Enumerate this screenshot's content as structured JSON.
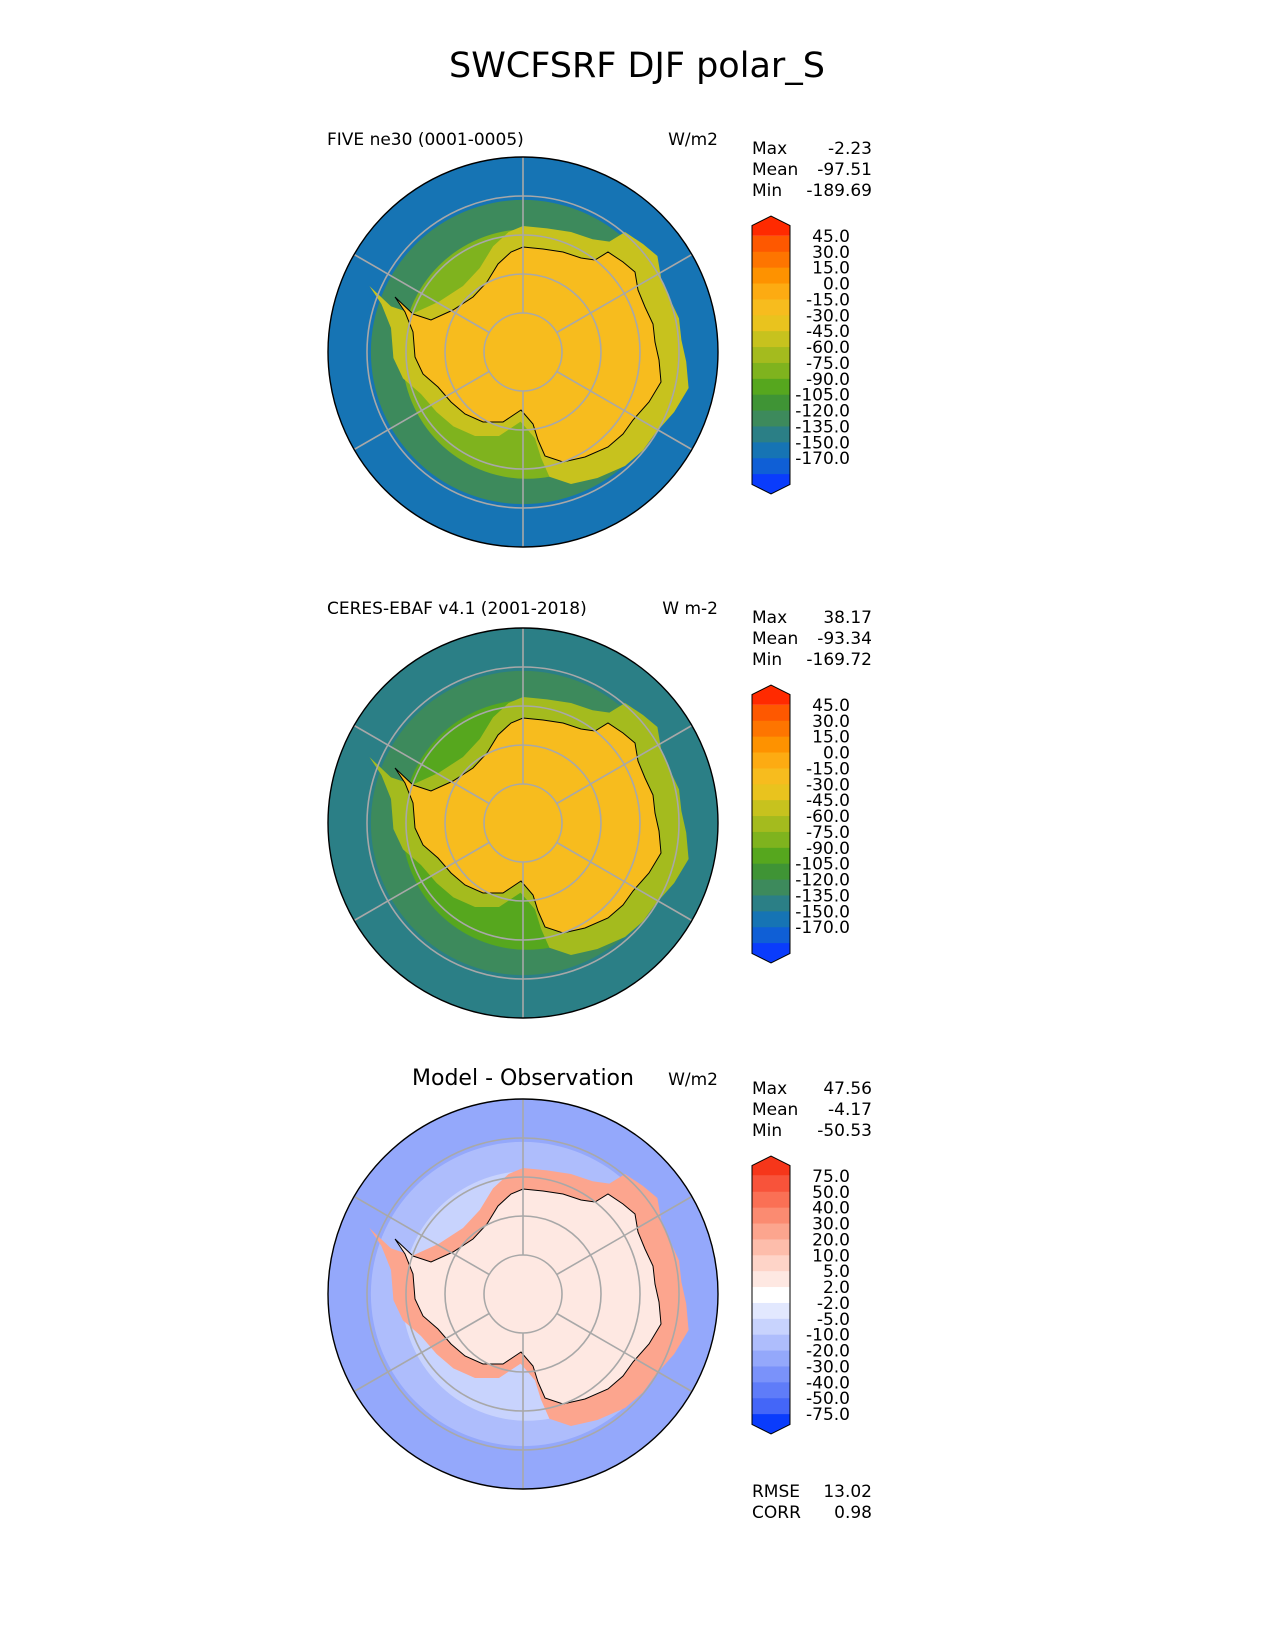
{
  "figure_title": "SWCFSRF DJF polar_S",
  "chart_data": [
    {
      "type": "heatmap",
      "projection": "south-polar-stereographic",
      "title": "FIVE ne30 (0001-0005)",
      "units": "W/m2",
      "stats": [
        {
          "label": "Max",
          "value": "-2.23"
        },
        {
          "label": "Mean",
          "value": "-97.51"
        },
        {
          "label": "Min",
          "value": "-189.69"
        }
      ],
      "colorbar": {
        "levels": [
          "45.0",
          "30.0",
          "15.0",
          "0.0",
          "-15.0",
          "-30.0",
          "-45.0",
          "-60.0",
          "-75.0",
          "-90.0",
          "-105.0",
          "-120.0",
          "-135.0",
          "-150.0",
          "-170.0"
        ],
        "colors": [
          "#ff2a00",
          "#fe5800",
          "#fe7500",
          "#fe9200",
          "#fdab12",
          "#f7bc1e",
          "#e9c31e",
          "#c7c21e",
          "#a4bb1e",
          "#7fb31e",
          "#56a71e",
          "#3f9435",
          "#3d8a5c",
          "#2b7f86",
          "#1674b4",
          "#0f5fd6",
          "#0a3cfc"
        ],
        "extend": "both"
      },
      "field": {
        "continent": -25,
        "coast_band": -55,
        "inner_ring": -80,
        "middle_ring": -120,
        "outer_ring": -150
      }
    },
    {
      "type": "heatmap",
      "projection": "south-polar-stereographic",
      "title": "CERES-EBAF v4.1 (2001-2018)",
      "units": "W m-2",
      "stats": [
        {
          "label": "Max",
          "value": "38.17"
        },
        {
          "label": "Mean",
          "value": "-93.34"
        },
        {
          "label": "Min",
          "value": "-169.72"
        }
      ],
      "colorbar": {
        "levels": [
          "45.0",
          "30.0",
          "15.0",
          "0.0",
          "-15.0",
          "-30.0",
          "-45.0",
          "-60.0",
          "-75.0",
          "-90.0",
          "-105.0",
          "-120.0",
          "-135.0",
          "-150.0",
          "-170.0"
        ],
        "colors": [
          "#ff2a00",
          "#fe5800",
          "#fe7500",
          "#fe9200",
          "#fdab12",
          "#f7bc1e",
          "#e9c31e",
          "#c7c21e",
          "#a4bb1e",
          "#7fb31e",
          "#56a71e",
          "#3f9435",
          "#3d8a5c",
          "#2b7f86",
          "#1674b4",
          "#0f5fd6",
          "#0a3cfc"
        ],
        "extend": "both"
      },
      "field": {
        "continent": -25,
        "coast_band": -60,
        "inner_ring": -95,
        "middle_ring": -125,
        "outer_ring": -140
      }
    },
    {
      "type": "heatmap",
      "projection": "south-polar-stereographic",
      "title": "Model - Observation",
      "units": "W/m2",
      "stats": [
        {
          "label": "Max",
          "value": "47.56"
        },
        {
          "label": "Mean",
          "value": "-4.17"
        },
        {
          "label": "Min",
          "value": "-50.53"
        }
      ],
      "metrics": [
        {
          "label": "RMSE",
          "value": "13.02"
        },
        {
          "label": "CORR",
          "value": "0.98"
        }
      ],
      "colorbar": {
        "levels": [
          "75.0",
          "50.0",
          "40.0",
          "30.0",
          "20.0",
          "10.0",
          "5.0",
          "2.0",
          "-2.0",
          "-5.0",
          "-10.0",
          "-20.0",
          "-30.0",
          "-40.0",
          "-50.0",
          "-75.0"
        ],
        "colors": [
          "#f6361a",
          "#f8533a",
          "#fa7055",
          "#fb8b71",
          "#fca58e",
          "#fdbdab",
          "#fed4c8",
          "#fee8e2",
          "#ffffff",
          "#e2e8fe",
          "#c8d3fd",
          "#aebdfc",
          "#94a8fb",
          "#7a92fa",
          "#5f7cf9",
          "#4466f8",
          "#0a3cfc"
        ],
        "extend": "both"
      },
      "field": {
        "continent": 5,
        "coast_band": 25,
        "inner_ring": -8,
        "middle_ring": -15,
        "outer_ring": -20
      }
    }
  ]
}
